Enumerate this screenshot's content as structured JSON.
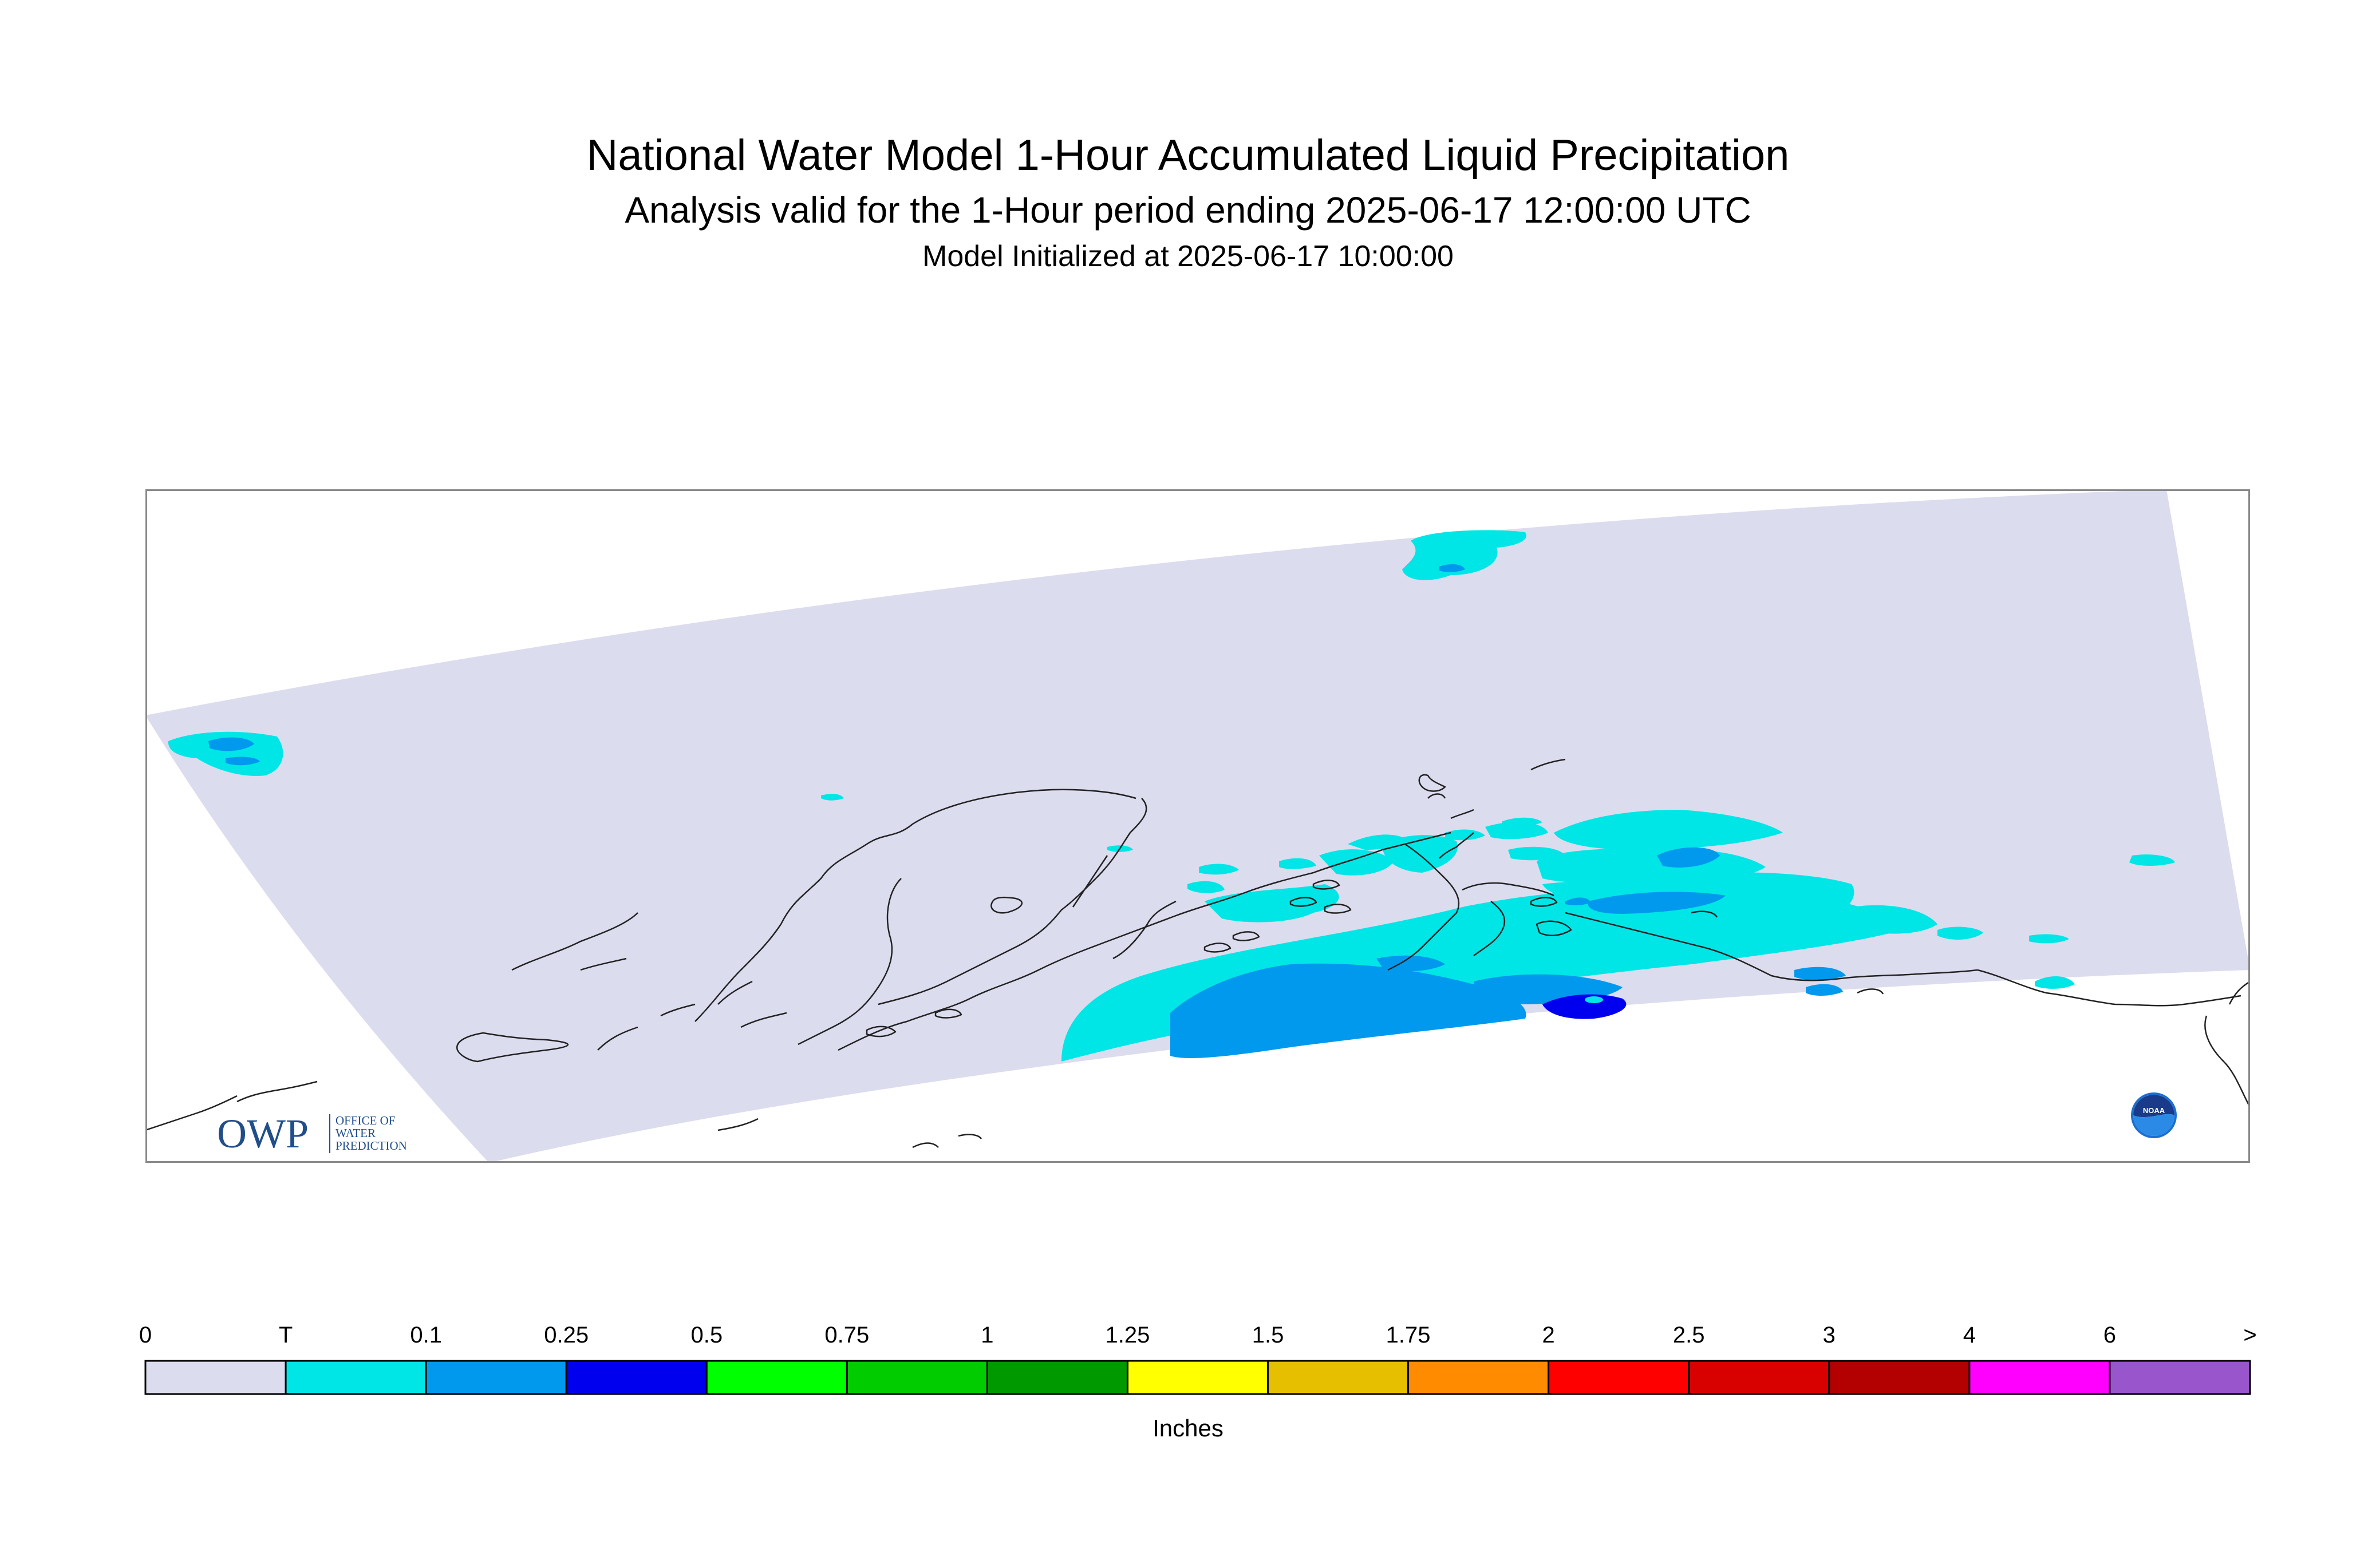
{
  "header": {
    "title": "National Water Model 1-Hour Accumulated Liquid Precipitation",
    "subtitle": "Analysis valid for the 1-Hour period ending 2025-06-17 12:00:00 UTC",
    "initialized": "Model Initialized at 2025-06-17 10:00:00"
  },
  "map": {
    "region_color": "#dcdcef",
    "frame_color": "#888888",
    "coast_color": "#222222",
    "precip_colors": {
      "trace": "#00e6e6",
      "low": "#0099ee",
      "mid": "#0000ee"
    }
  },
  "logos": {
    "owp": {
      "mark": "OWP",
      "line1": "OFFICE OF",
      "line2": "WATER",
      "line3": "PREDICTION",
      "color": "#1f4e8a"
    },
    "noaa": {
      "text": "NOAA",
      "color": "#1a6fd0"
    }
  },
  "legend": {
    "labels": [
      "0",
      "T",
      "0.1",
      "0.25",
      "0.5",
      "0.75",
      "1",
      "1.25",
      "1.5",
      "1.75",
      "2",
      "2.5",
      "3",
      "4",
      "6",
      ">"
    ],
    "colors": [
      "#dcdcef",
      "#00e6e6",
      "#0099ee",
      "#0000ee",
      "#00ff00",
      "#00cc00",
      "#009900",
      "#ffff00",
      "#e6bf00",
      "#ff8c00",
      "#ff0000",
      "#d90000",
      "#b30000",
      "#ff00ff",
      "#9955cc"
    ],
    "units": "Inches"
  }
}
